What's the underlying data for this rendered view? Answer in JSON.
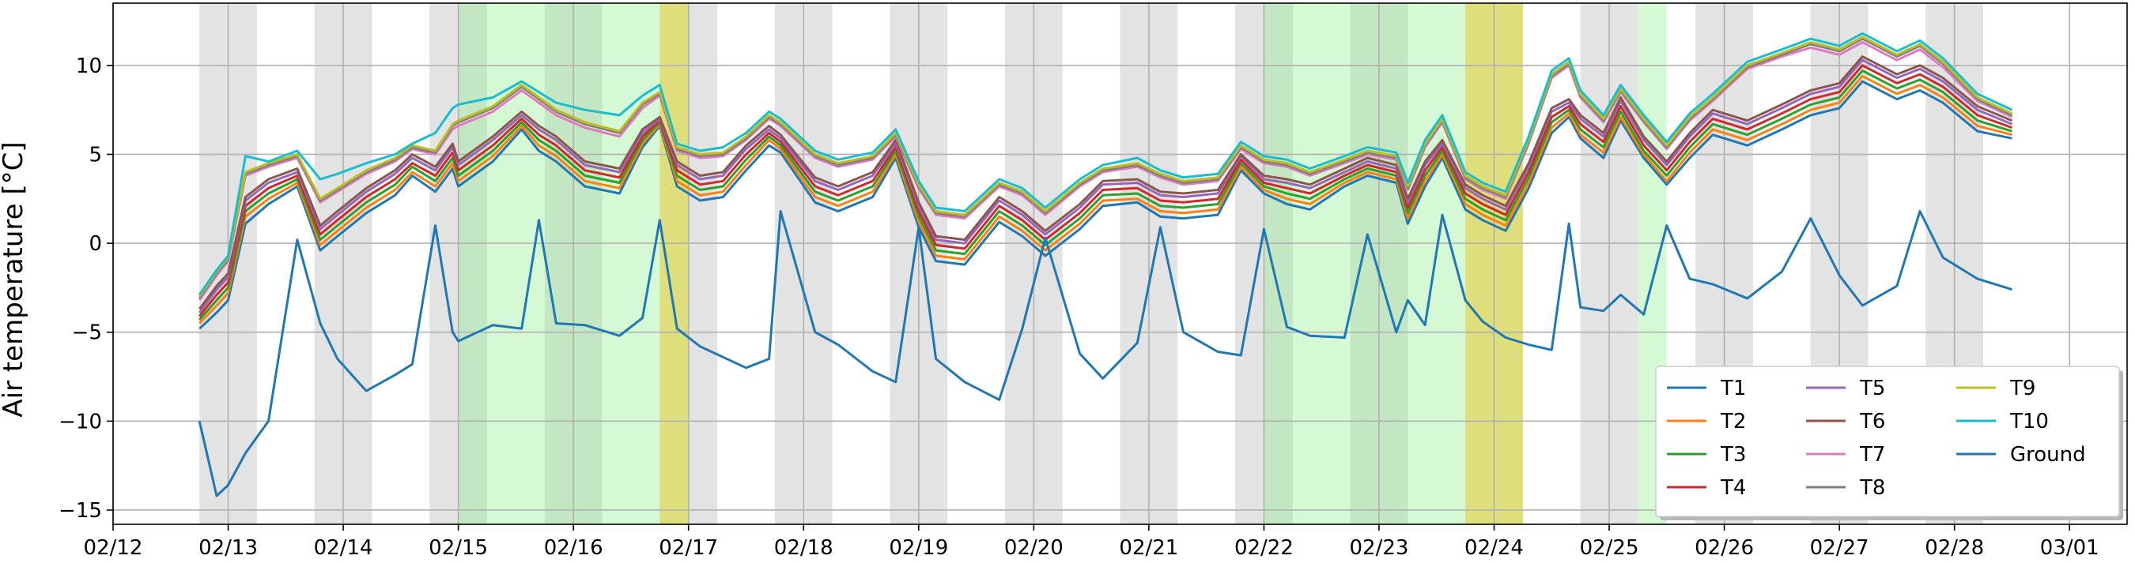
{
  "chart_data": {
    "type": "line",
    "ylabel": "Air temperature [°C]",
    "xlabel": "",
    "ylim": [
      -15.8,
      13.5
    ],
    "xlim": [
      0,
      17.5
    ],
    "grid": true,
    "legend_position": "bottom-right",
    "legend_columns": 3,
    "x_ticks": [
      {
        "value": 0,
        "label": "02/12"
      },
      {
        "value": 1,
        "label": "02/13"
      },
      {
        "value": 2,
        "label": "02/14"
      },
      {
        "value": 3,
        "label": "02/15"
      },
      {
        "value": 4,
        "label": "02/16"
      },
      {
        "value": 5,
        "label": "02/17"
      },
      {
        "value": 6,
        "label": "02/18"
      },
      {
        "value": 7,
        "label": "02/19"
      },
      {
        "value": 8,
        "label": "02/20"
      },
      {
        "value": 9,
        "label": "02/21"
      },
      {
        "value": 10,
        "label": "02/22"
      },
      {
        "value": 11,
        "label": "02/23"
      },
      {
        "value": 12,
        "label": "02/24"
      },
      {
        "value": 13,
        "label": "02/25"
      },
      {
        "value": 14,
        "label": "02/26"
      },
      {
        "value": 15,
        "label": "02/27"
      },
      {
        "value": 16,
        "label": "02/28"
      },
      {
        "value": 17,
        "label": "03/01"
      }
    ],
    "y_ticks": [
      {
        "value": -15,
        "label": "−15"
      },
      {
        "value": -10,
        "label": "−10"
      },
      {
        "value": -5,
        "label": "−5"
      },
      {
        "value": 0,
        "label": "0"
      },
      {
        "value": 5,
        "label": "5"
      },
      {
        "value": 10,
        "label": "10"
      }
    ],
    "night_bands_gray": [
      [
        0.75,
        1.25
      ],
      [
        1.75,
        2.25
      ],
      [
        2.75,
        3.25
      ],
      [
        3.75,
        4.25
      ],
      [
        4.75,
        5.25
      ],
      [
        5.75,
        6.25
      ],
      [
        6.75,
        7.25
      ],
      [
        7.75,
        8.25
      ],
      [
        8.75,
        9.25
      ],
      [
        9.75,
        10.25
      ],
      [
        10.75,
        11.25
      ],
      [
        11.75,
        12.25
      ],
      [
        12.75,
        13.25
      ],
      [
        13.75,
        14.25
      ],
      [
        14.75,
        15.25
      ],
      [
        15.75,
        16.25
      ]
    ],
    "green_bands": [
      [
        3.0,
        4.75
      ],
      [
        10.0,
        11.75
      ],
      [
        13.25,
        13.5
      ]
    ],
    "yellow_bands": [
      [
        4.75,
        5.0
      ],
      [
        11.75,
        12.25
      ]
    ],
    "time": [
      0.75,
      0.9,
      1.0,
      1.15,
      1.35,
      1.6,
      1.8,
      1.95,
      2.2,
      2.45,
      2.6,
      2.8,
      2.95,
      3.0,
      3.3,
      3.55,
      3.7,
      3.85,
      4.1,
      4.4,
      4.6,
      4.75,
      4.9,
      5.1,
      5.3,
      5.5,
      5.7,
      5.8,
      6.1,
      6.3,
      6.6,
      6.8,
      7.0,
      7.15,
      7.4,
      7.7,
      7.9,
      8.1,
      8.4,
      8.6,
      8.9,
      9.1,
      9.3,
      9.6,
      9.8,
      10.0,
      10.2,
      10.4,
      10.7,
      10.9,
      11.15,
      11.25,
      11.4,
      11.55,
      11.75,
      11.9,
      12.1,
      12.3,
      12.5,
      12.65,
      12.75,
      12.95,
      13.1,
      13.3,
      13.5,
      13.7,
      13.9,
      14.2,
      14.5,
      14.75,
      15.0,
      15.2,
      15.5,
      15.7,
      15.9,
      16.2,
      16.5
    ],
    "series": [
      {
        "name": "T1",
        "color": "#1f77b4",
        "values": [
          -4.8,
          -3.9,
          -3.2,
          1.1,
          2.2,
          3.2,
          -0.4,
          0.4,
          1.7,
          2.7,
          3.8,
          2.9,
          4.2,
          3.2,
          4.6,
          6.4,
          5.2,
          4.6,
          3.2,
          2.8,
          5.4,
          6.6,
          3.2,
          2.4,
          2.6,
          4.1,
          5.5,
          5.1,
          2.3,
          1.8,
          2.6,
          4.8,
          0.9,
          -1.0,
          -1.2,
          1.2,
          0.4,
          -0.7,
          0.8,
          2.1,
          2.3,
          1.5,
          1.4,
          1.6,
          4.1,
          2.8,
          2.2,
          1.9,
          3.2,
          3.8,
          3.4,
          1.1,
          3.2,
          4.8,
          1.9,
          1.3,
          0.7,
          3.1,
          6.2,
          7.1,
          5.9,
          4.8,
          6.9,
          4.8,
          3.3,
          4.8,
          6.1,
          5.5,
          6.4,
          7.2,
          7.6,
          9.1,
          8.1,
          8.6,
          7.9,
          6.3,
          5.9
        ]
      },
      {
        "name": "T2",
        "color": "#ff7f0e",
        "values": [
          -4.5,
          -3.5,
          -2.8,
          1.5,
          2.5,
          3.4,
          -0.1,
          0.7,
          2.0,
          3.0,
          4.0,
          3.2,
          4.5,
          3.5,
          4.9,
          6.6,
          5.5,
          4.9,
          3.5,
          3.1,
          5.6,
          6.7,
          3.5,
          2.7,
          2.9,
          4.4,
          5.8,
          5.3,
          2.6,
          2.1,
          2.9,
          5.0,
          1.2,
          -0.7,
          -0.9,
          1.5,
          0.7,
          -0.4,
          1.1,
          2.4,
          2.5,
          1.8,
          1.7,
          1.9,
          4.3,
          3.0,
          2.5,
          2.2,
          3.4,
          4.0,
          3.6,
          1.4,
          3.5,
          5.0,
          2.2,
          1.6,
          1.0,
          3.4,
          6.5,
          7.3,
          6.1,
          5.1,
          7.1,
          5.0,
          3.5,
          5.1,
          6.4,
          5.8,
          6.7,
          7.5,
          7.9,
          9.4,
          8.4,
          8.9,
          8.2,
          6.6,
          6.1
        ]
      },
      {
        "name": "T3",
        "color": "#2ca02c",
        "values": [
          -4.3,
          -3.2,
          -2.5,
          1.8,
          2.8,
          3.6,
          0.2,
          1.0,
          2.3,
          3.3,
          4.3,
          3.5,
          4.8,
          3.8,
          5.2,
          6.8,
          5.8,
          5.2,
          3.8,
          3.4,
          5.8,
          6.8,
          3.8,
          3.0,
          3.2,
          4.7,
          6.0,
          5.5,
          2.9,
          2.4,
          3.2,
          5.2,
          1.5,
          -0.4,
          -0.6,
          1.8,
          1.0,
          -0.1,
          1.4,
          2.7,
          2.8,
          2.1,
          2.0,
          2.2,
          4.5,
          3.2,
          2.8,
          2.5,
          3.6,
          4.2,
          3.8,
          1.7,
          3.8,
          5.2,
          2.5,
          1.9,
          1.3,
          3.7,
          6.8,
          7.5,
          6.4,
          5.4,
          7.4,
          5.2,
          3.8,
          5.4,
          6.7,
          6.1,
          7.0,
          7.8,
          8.2,
          9.7,
          8.7,
          9.2,
          8.5,
          6.9,
          6.3
        ]
      },
      {
        "name": "T4",
        "color": "#d62728",
        "values": [
          -4.1,
          -2.9,
          -2.2,
          2.1,
          3.1,
          3.8,
          0.5,
          1.3,
          2.6,
          3.6,
          4.5,
          3.8,
          5.1,
          4.1,
          5.5,
          7.0,
          6.1,
          5.5,
          4.1,
          3.7,
          6.0,
          6.9,
          4.1,
          3.3,
          3.5,
          5.0,
          6.2,
          5.7,
          3.2,
          2.7,
          3.5,
          5.4,
          1.8,
          -0.1,
          -0.3,
          2.1,
          1.3,
          0.2,
          1.7,
          3.0,
          3.1,
          2.4,
          2.3,
          2.5,
          4.7,
          3.4,
          3.1,
          2.8,
          3.8,
          4.4,
          4.0,
          2.0,
          4.1,
          5.4,
          2.8,
          2.2,
          1.6,
          4.0,
          7.1,
          7.7,
          6.7,
          5.7,
          7.7,
          5.5,
          4.1,
          5.7,
          7.0,
          6.4,
          7.3,
          8.1,
          8.5,
          10.0,
          9.0,
          9.5,
          8.8,
          7.2,
          6.5
        ]
      },
      {
        "name": "T5",
        "color": "#9467bd",
        "values": [
          -3.9,
          -2.6,
          -1.9,
          2.4,
          3.4,
          4.0,
          0.8,
          1.6,
          2.9,
          3.9,
          4.8,
          4.1,
          5.4,
          4.4,
          5.8,
          7.2,
          6.4,
          5.8,
          4.4,
          4.0,
          6.2,
          7.0,
          4.4,
          3.6,
          3.8,
          5.3,
          6.4,
          5.9,
          3.5,
          3.0,
          3.8,
          5.6,
          2.1,
          0.2,
          0.0,
          2.4,
          1.6,
          0.5,
          2.0,
          3.3,
          3.4,
          2.7,
          2.6,
          2.8,
          4.9,
          3.6,
          3.4,
          3.1,
          4.0,
          4.6,
          4.2,
          2.3,
          4.4,
          5.6,
          3.1,
          2.5,
          1.9,
          4.3,
          7.4,
          7.9,
          7.0,
          6.0,
          8.0,
          5.8,
          4.4,
          6.0,
          7.3,
          6.7,
          7.6,
          8.4,
          8.8,
          10.3,
          9.3,
          9.8,
          9.1,
          7.5,
          6.7
        ]
      },
      {
        "name": "T6",
        "color": "#8c564b",
        "values": [
          -3.7,
          -2.4,
          -1.7,
          2.6,
          3.6,
          4.2,
          1.0,
          1.8,
          3.1,
          4.1,
          5.0,
          4.3,
          5.6,
          4.6,
          6.0,
          7.4,
          6.6,
          6.0,
          4.6,
          4.2,
          6.4,
          7.1,
          4.6,
          3.8,
          4.0,
          5.5,
          6.6,
          6.1,
          3.7,
          3.2,
          4.0,
          5.8,
          2.3,
          0.4,
          0.2,
          2.6,
          1.8,
          0.7,
          2.2,
          3.5,
          3.6,
          2.9,
          2.8,
          3.0,
          5.0,
          3.8,
          3.6,
          3.3,
          4.2,
          4.8,
          4.4,
          2.5,
          4.6,
          5.8,
          3.3,
          2.7,
          2.1,
          4.5,
          7.6,
          8.1,
          7.2,
          6.2,
          8.2,
          6.0,
          4.6,
          6.2,
          7.5,
          6.9,
          7.8,
          8.6,
          9.0,
          10.5,
          9.5,
          10.0,
          9.3,
          7.7,
          6.9
        ]
      },
      {
        "name": "T7",
        "color": "#e377c2",
        "values": [
          -3.2,
          -1.8,
          -1.0,
          3.8,
          4.3,
          4.8,
          2.3,
          2.9,
          3.9,
          4.6,
          5.3,
          5.0,
          6.4,
          6.6,
          7.4,
          8.6,
          7.9,
          7.2,
          6.5,
          6.0,
          7.6,
          8.3,
          5.2,
          4.8,
          4.9,
          5.8,
          7.0,
          6.6,
          4.8,
          4.3,
          4.7,
          6.0,
          3.1,
          1.6,
          1.4,
          3.2,
          2.7,
          1.6,
          3.2,
          4.0,
          4.3,
          3.7,
          3.3,
          3.5,
          5.3,
          4.5,
          4.3,
          3.8,
          4.5,
          5.0,
          4.7,
          3.0,
          5.4,
          6.8,
          3.6,
          3.0,
          2.5,
          5.6,
          9.3,
          10.0,
          8.2,
          6.8,
          8.5,
          6.8,
          5.3,
          6.9,
          8.0,
          9.8,
          10.5,
          11.0,
          10.6,
          11.3,
          10.3,
          10.9,
          9.9,
          8.0,
          7.1
        ]
      },
      {
        "name": "T8",
        "color": "#7f7f7f",
        "values": [
          -3.1,
          -1.7,
          -0.9,
          3.9,
          4.4,
          4.9,
          2.4,
          3.0,
          4.0,
          4.7,
          5.4,
          5.1,
          6.6,
          6.8,
          7.6,
          8.8,
          8.1,
          7.4,
          6.7,
          6.2,
          7.8,
          8.4,
          5.3,
          4.9,
          5.0,
          5.9,
          7.1,
          6.7,
          4.9,
          4.4,
          4.8,
          6.1,
          3.2,
          1.7,
          1.5,
          3.3,
          2.8,
          1.7,
          3.3,
          4.1,
          4.4,
          3.8,
          3.4,
          3.6,
          5.4,
          4.6,
          4.4,
          3.9,
          4.6,
          5.1,
          4.8,
          3.1,
          5.5,
          6.9,
          3.7,
          3.1,
          2.6,
          5.7,
          9.4,
          10.1,
          8.3,
          6.9,
          8.6,
          6.9,
          5.4,
          7.0,
          8.1,
          9.9,
          10.6,
          11.2,
          10.8,
          11.5,
          10.5,
          11.1,
          10.1,
          8.1,
          7.2
        ]
      },
      {
        "name": "T9",
        "color": "#bcbd22",
        "values": [
          -3.0,
          -1.6,
          -0.8,
          4.0,
          4.5,
          5.0,
          2.5,
          3.1,
          4.1,
          4.8,
          5.5,
          5.2,
          6.7,
          6.9,
          7.7,
          8.9,
          8.2,
          7.5,
          6.8,
          6.3,
          7.9,
          8.5,
          5.4,
          5.0,
          5.1,
          6.0,
          7.2,
          6.8,
          5.0,
          4.5,
          4.9,
          6.2,
          3.3,
          1.8,
          1.6,
          3.4,
          2.9,
          1.8,
          3.4,
          4.2,
          4.5,
          3.9,
          3.5,
          3.7,
          5.5,
          4.7,
          4.5,
          4.0,
          4.7,
          5.2,
          4.9,
          3.2,
          5.6,
          7.0,
          3.8,
          3.2,
          2.7,
          5.8,
          9.5,
          10.2,
          8.4,
          7.0,
          8.7,
          7.0,
          5.5,
          7.1,
          8.2,
          10.0,
          10.7,
          11.3,
          10.9,
          11.6,
          10.6,
          11.2,
          10.2,
          8.2,
          7.3
        ]
      },
      {
        "name": "T10",
        "color": "#17becf",
        "values": [
          -2.9,
          -1.5,
          -0.7,
          4.9,
          4.6,
          5.2,
          3.6,
          3.9,
          4.5,
          5.0,
          5.6,
          6.2,
          7.6,
          7.8,
          8.2,
          9.1,
          8.5,
          7.9,
          7.5,
          7.2,
          8.3,
          8.9,
          5.6,
          5.2,
          5.4,
          6.2,
          7.4,
          7.0,
          5.2,
          4.7,
          5.1,
          6.4,
          3.5,
          2.0,
          1.8,
          3.6,
          3.1,
          2.0,
          3.6,
          4.4,
          4.8,
          4.1,
          3.7,
          3.9,
          5.7,
          4.9,
          4.7,
          4.2,
          4.9,
          5.4,
          5.1,
          3.4,
          5.8,
          7.2,
          4.0,
          3.4,
          2.9,
          6.0,
          9.7,
          10.4,
          8.6,
          7.2,
          8.9,
          7.2,
          5.7,
          7.3,
          8.4,
          10.2,
          10.9,
          11.5,
          11.1,
          11.8,
          10.8,
          11.4,
          10.4,
          8.4,
          7.5
        ]
      },
      {
        "name": "Ground",
        "color": "#1f77b4",
        "values": [
          -10.0,
          -14.2,
          -13.6,
          -11.8,
          -10.0,
          0.2,
          -4.5,
          -6.5,
          -8.3,
          -7.4,
          -6.8,
          1.0,
          -5.0,
          -5.5,
          -4.6,
          -4.8,
          1.3,
          -4.5,
          -4.6,
          -5.2,
          -4.2,
          1.3,
          -4.8,
          -5.8,
          -6.4,
          -7.0,
          -6.5,
          1.8,
          -5.0,
          -5.7,
          -7.2,
          -7.8,
          0.9,
          -6.5,
          -7.8,
          -8.8,
          -4.8,
          0.3,
          -6.2,
          -7.6,
          -5.6,
          0.9,
          -5.0,
          -6.1,
          -6.3,
          0.8,
          -4.7,
          -5.2,
          -5.3,
          0.5,
          -5.0,
          -3.2,
          -4.6,
          1.6,
          -3.2,
          -4.4,
          -5.3,
          -5.7,
          -6.0,
          1.1,
          -3.6,
          -3.8,
          -2.9,
          -4.0,
          1.0,
          -2.0,
          -2.3,
          -3.1,
          -1.6,
          1.4,
          -1.8,
          -3.5,
          -2.4,
          1.8,
          -0.8,
          -2.0,
          -2.6
        ]
      }
    ]
  }
}
